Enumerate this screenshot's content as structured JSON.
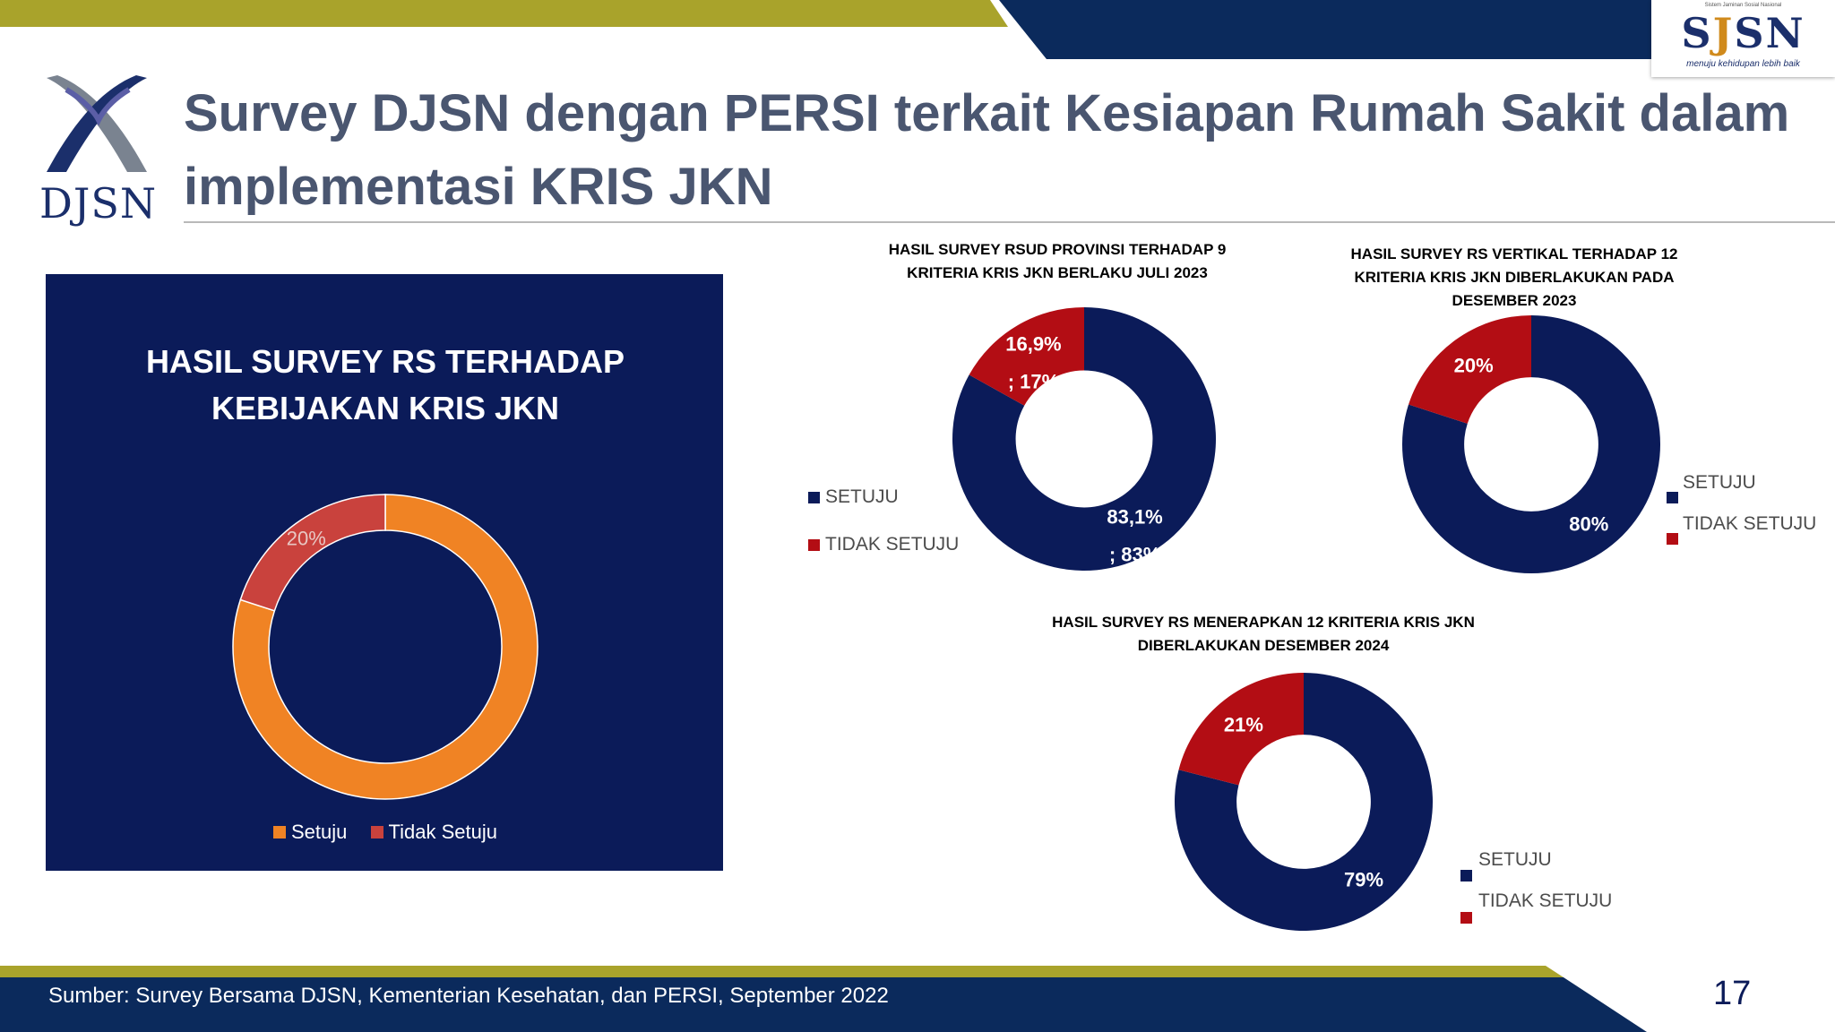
{
  "header": {
    "title_line1": "Survey DJSN dengan PERSI terkait Kesiapan Rumah Sakit dalam",
    "title_line2": "implementasi KRIS JKN",
    "djsn_logo_text": "DJSN",
    "sjsn_logo_text_s1": "S",
    "sjsn_logo_text_j": "J",
    "sjsn_logo_text_sn": "SN",
    "sjsn_tagline": "menuju kehidupan lebih baik",
    "sjsn_top_text": "Sistem Jaminan Sosial Nasional"
  },
  "colors": {
    "navy": "#0b1b59",
    "dark_red": "#b30d14",
    "orange": "#f08324",
    "red": "#c9423d",
    "olive": "#a9a32b",
    "title_gray": "#4a5670"
  },
  "chart_data": [
    {
      "type": "pie",
      "title": "HASIL SURVEY RS TERHADAP KEBIJAKAN KRIS JKN",
      "title_line1": "HASIL SURVEY RS TERHADAP",
      "title_line2": "KEBIJAKAN KRIS JKN",
      "categories": [
        "Setuju",
        "Tidak Setuju"
      ],
      "values": [
        80,
        20
      ],
      "slice_labels": [
        "",
        "20%"
      ],
      "colors": [
        "#f08324",
        "#c9423d"
      ],
      "legend_position": "bottom"
    },
    {
      "type": "pie",
      "title": "HASIL SURVEY RSUD PROVINSI TERHADAP 9 KRITERIA KRIS JKN BERLAKU JULI 2023",
      "title_line1": "HASIL SURVEY RSUD PROVINSI TERHADAP  9",
      "title_line2": "KRITERIA KRIS JKN BERLAKU JULI 2023",
      "categories": [
        "SETUJU",
        "TIDAK SETUJU"
      ],
      "values": [
        83.1,
        16.9
      ],
      "label_a": [
        "83,1%",
        "16,9%"
      ],
      "label_b": [
        "; 83%",
        "; 17%"
      ],
      "colors": [
        "#0b1b59",
        "#b30d14"
      ],
      "legend_position": "left"
    },
    {
      "type": "pie",
      "title": "HASIL SURVEY RS VERTIKAL TERHADAP 12 KRITERIA KRIS JKN DIBERLAKUKAN PADA DESEMBER 2023",
      "title_line1": "HASIL SURVEY RS  VERTIKAL  TERHADAP  12",
      "title_line2": "KRITERIA KRIS JKN DIBERLAKUKAN PADA",
      "title_line3": "DESEMBER 2023",
      "categories": [
        "SETUJU",
        "TIDAK SETUJU"
      ],
      "values": [
        80,
        20
      ],
      "slice_labels": [
        "80%",
        "20%"
      ],
      "colors": [
        "#0b1b59",
        "#b30d14"
      ],
      "legend_position": "right"
    },
    {
      "type": "pie",
      "title": "HASIL SURVEY RS MENERAPKAN 12 KRITERIA KRIS JKN DIBERLAKUKAN DESEMBER 2024",
      "title_line1": "HASIL SURVEY RS MENERAPKAN 12 KRITERIA KRIS JKN",
      "title_line2": "DIBERLAKUKAN DESEMBER 2024",
      "categories": [
        "SETUJU",
        "TIDAK SETUJU"
      ],
      "values": [
        79,
        21
      ],
      "slice_labels": [
        "79%",
        "21%"
      ],
      "colors": [
        "#0b1b59",
        "#b30d14"
      ],
      "legend_position": "right"
    }
  ],
  "footer": {
    "source": "Sumber: Survey Bersama DJSN, Kementerian Kesehatan, dan PERSI, September 2022",
    "page_number": "17"
  }
}
